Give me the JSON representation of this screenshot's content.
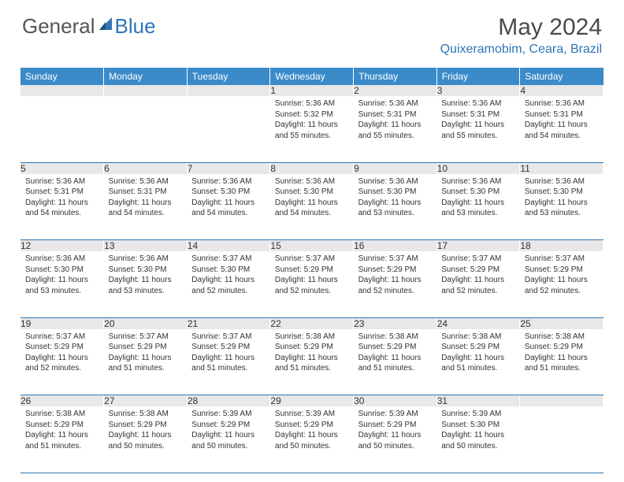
{
  "logo": {
    "text_general": "General",
    "text_blue": "Blue"
  },
  "title": "May 2024",
  "location": "Quixeramobim, Ceara, Brazil",
  "header_color": "#3b8bc9",
  "accent_color": "#2e75b6",
  "daynum_bg": "#e8e8e8",
  "weekdays": [
    "Sunday",
    "Monday",
    "Tuesday",
    "Wednesday",
    "Thursday",
    "Friday",
    "Saturday"
  ],
  "weeks": [
    [
      null,
      null,
      null,
      {
        "n": "1",
        "sr": "Sunrise: 5:36 AM",
        "ss": "Sunset: 5:32 PM",
        "d1": "Daylight: 11 hours",
        "d2": "and 55 minutes."
      },
      {
        "n": "2",
        "sr": "Sunrise: 5:36 AM",
        "ss": "Sunset: 5:31 PM",
        "d1": "Daylight: 11 hours",
        "d2": "and 55 minutes."
      },
      {
        "n": "3",
        "sr": "Sunrise: 5:36 AM",
        "ss": "Sunset: 5:31 PM",
        "d1": "Daylight: 11 hours",
        "d2": "and 55 minutes."
      },
      {
        "n": "4",
        "sr": "Sunrise: 5:36 AM",
        "ss": "Sunset: 5:31 PM",
        "d1": "Daylight: 11 hours",
        "d2": "and 54 minutes."
      }
    ],
    [
      {
        "n": "5",
        "sr": "Sunrise: 5:36 AM",
        "ss": "Sunset: 5:31 PM",
        "d1": "Daylight: 11 hours",
        "d2": "and 54 minutes."
      },
      {
        "n": "6",
        "sr": "Sunrise: 5:36 AM",
        "ss": "Sunset: 5:31 PM",
        "d1": "Daylight: 11 hours",
        "d2": "and 54 minutes."
      },
      {
        "n": "7",
        "sr": "Sunrise: 5:36 AM",
        "ss": "Sunset: 5:30 PM",
        "d1": "Daylight: 11 hours",
        "d2": "and 54 minutes."
      },
      {
        "n": "8",
        "sr": "Sunrise: 5:36 AM",
        "ss": "Sunset: 5:30 PM",
        "d1": "Daylight: 11 hours",
        "d2": "and 54 minutes."
      },
      {
        "n": "9",
        "sr": "Sunrise: 5:36 AM",
        "ss": "Sunset: 5:30 PM",
        "d1": "Daylight: 11 hours",
        "d2": "and 53 minutes."
      },
      {
        "n": "10",
        "sr": "Sunrise: 5:36 AM",
        "ss": "Sunset: 5:30 PM",
        "d1": "Daylight: 11 hours",
        "d2": "and 53 minutes."
      },
      {
        "n": "11",
        "sr": "Sunrise: 5:36 AM",
        "ss": "Sunset: 5:30 PM",
        "d1": "Daylight: 11 hours",
        "d2": "and 53 minutes."
      }
    ],
    [
      {
        "n": "12",
        "sr": "Sunrise: 5:36 AM",
        "ss": "Sunset: 5:30 PM",
        "d1": "Daylight: 11 hours",
        "d2": "and 53 minutes."
      },
      {
        "n": "13",
        "sr": "Sunrise: 5:36 AM",
        "ss": "Sunset: 5:30 PM",
        "d1": "Daylight: 11 hours",
        "d2": "and 53 minutes."
      },
      {
        "n": "14",
        "sr": "Sunrise: 5:37 AM",
        "ss": "Sunset: 5:30 PM",
        "d1": "Daylight: 11 hours",
        "d2": "and 52 minutes."
      },
      {
        "n": "15",
        "sr": "Sunrise: 5:37 AM",
        "ss": "Sunset: 5:29 PM",
        "d1": "Daylight: 11 hours",
        "d2": "and 52 minutes."
      },
      {
        "n": "16",
        "sr": "Sunrise: 5:37 AM",
        "ss": "Sunset: 5:29 PM",
        "d1": "Daylight: 11 hours",
        "d2": "and 52 minutes."
      },
      {
        "n": "17",
        "sr": "Sunrise: 5:37 AM",
        "ss": "Sunset: 5:29 PM",
        "d1": "Daylight: 11 hours",
        "d2": "and 52 minutes."
      },
      {
        "n": "18",
        "sr": "Sunrise: 5:37 AM",
        "ss": "Sunset: 5:29 PM",
        "d1": "Daylight: 11 hours",
        "d2": "and 52 minutes."
      }
    ],
    [
      {
        "n": "19",
        "sr": "Sunrise: 5:37 AM",
        "ss": "Sunset: 5:29 PM",
        "d1": "Daylight: 11 hours",
        "d2": "and 52 minutes."
      },
      {
        "n": "20",
        "sr": "Sunrise: 5:37 AM",
        "ss": "Sunset: 5:29 PM",
        "d1": "Daylight: 11 hours",
        "d2": "and 51 minutes."
      },
      {
        "n": "21",
        "sr": "Sunrise: 5:37 AM",
        "ss": "Sunset: 5:29 PM",
        "d1": "Daylight: 11 hours",
        "d2": "and 51 minutes."
      },
      {
        "n": "22",
        "sr": "Sunrise: 5:38 AM",
        "ss": "Sunset: 5:29 PM",
        "d1": "Daylight: 11 hours",
        "d2": "and 51 minutes."
      },
      {
        "n": "23",
        "sr": "Sunrise: 5:38 AM",
        "ss": "Sunset: 5:29 PM",
        "d1": "Daylight: 11 hours",
        "d2": "and 51 minutes."
      },
      {
        "n": "24",
        "sr": "Sunrise: 5:38 AM",
        "ss": "Sunset: 5:29 PM",
        "d1": "Daylight: 11 hours",
        "d2": "and 51 minutes."
      },
      {
        "n": "25",
        "sr": "Sunrise: 5:38 AM",
        "ss": "Sunset: 5:29 PM",
        "d1": "Daylight: 11 hours",
        "d2": "and 51 minutes."
      }
    ],
    [
      {
        "n": "26",
        "sr": "Sunrise: 5:38 AM",
        "ss": "Sunset: 5:29 PM",
        "d1": "Daylight: 11 hours",
        "d2": "and 51 minutes."
      },
      {
        "n": "27",
        "sr": "Sunrise: 5:38 AM",
        "ss": "Sunset: 5:29 PM",
        "d1": "Daylight: 11 hours",
        "d2": "and 50 minutes."
      },
      {
        "n": "28",
        "sr": "Sunrise: 5:39 AM",
        "ss": "Sunset: 5:29 PM",
        "d1": "Daylight: 11 hours",
        "d2": "and 50 minutes."
      },
      {
        "n": "29",
        "sr": "Sunrise: 5:39 AM",
        "ss": "Sunset: 5:29 PM",
        "d1": "Daylight: 11 hours",
        "d2": "and 50 minutes."
      },
      {
        "n": "30",
        "sr": "Sunrise: 5:39 AM",
        "ss": "Sunset: 5:29 PM",
        "d1": "Daylight: 11 hours",
        "d2": "and 50 minutes."
      },
      {
        "n": "31",
        "sr": "Sunrise: 5:39 AM",
        "ss": "Sunset: 5:30 PM",
        "d1": "Daylight: 11 hours",
        "d2": "and 50 minutes."
      },
      null
    ]
  ]
}
